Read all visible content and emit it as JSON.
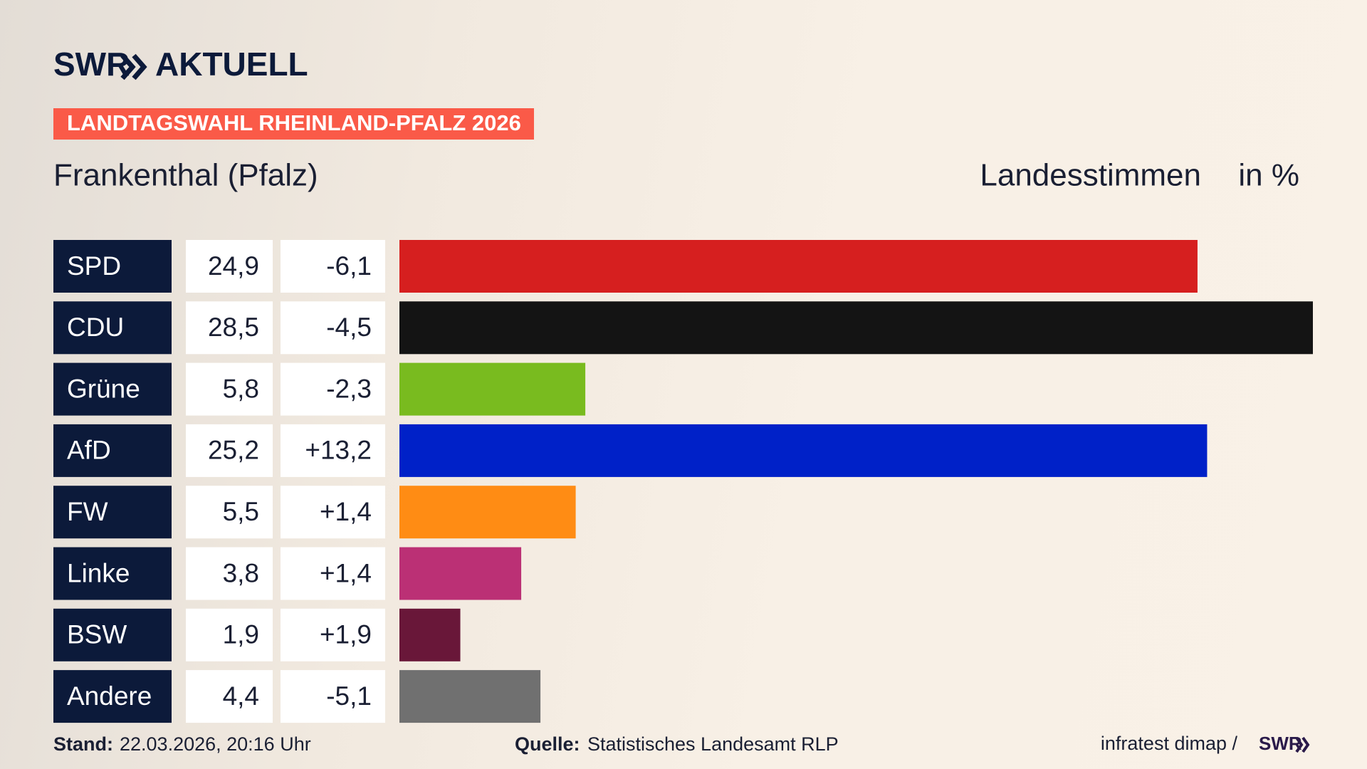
{
  "chart_data": {
    "type": "bar",
    "logo": "SWR",
    "section": "AKTUELL",
    "tag": "LANDTAGSWAHL RHEINLAND-PFALZ 2026",
    "title": "Frankenthal (Pfalz)",
    "measure": "Landesstimmen",
    "unit": "in %",
    "categories": [
      "SPD",
      "CDU",
      "Grüne",
      "AfD",
      "FW",
      "Linke",
      "BSW",
      "Andere"
    ],
    "values": [
      24.9,
      28.5,
      5.8,
      25.2,
      5.5,
      3.8,
      1.9,
      4.4
    ],
    "value_labels": [
      "24,9",
      "28,5",
      "5,8",
      "25,2",
      "5,5",
      "3,8",
      "1,9",
      "4,4"
    ],
    "changes": [
      {
        "value": -6.1,
        "label": "-6,1"
      },
      {
        "value": -4.5,
        "label": "-4,5"
      },
      {
        "value": -2.3,
        "label": "-2,3"
      },
      {
        "value": 13.2,
        "label": "+13,2"
      },
      {
        "value": 1.4,
        "label": "+1,4"
      },
      {
        "value": 1.4,
        "label": "+1,4"
      },
      {
        "value": 1.9,
        "label": "+1,9"
      },
      {
        "value": -5.1,
        "label": "-5,1"
      }
    ],
    "colors": [
      "#d61f1f",
      "#141414",
      "#79bb1f",
      "#0021c8",
      "#ff8c14",
      "#bb3075",
      "#691739",
      "#707070"
    ],
    "footer": {
      "date_label": "Stand:",
      "date": "22.03.2026, 20:16 Uhr",
      "source_label": "Quelle:",
      "source": "Statistisches Landesamt RLP",
      "credit": "infratest dimap /",
      "credit_logo": "SWR"
    }
  }
}
